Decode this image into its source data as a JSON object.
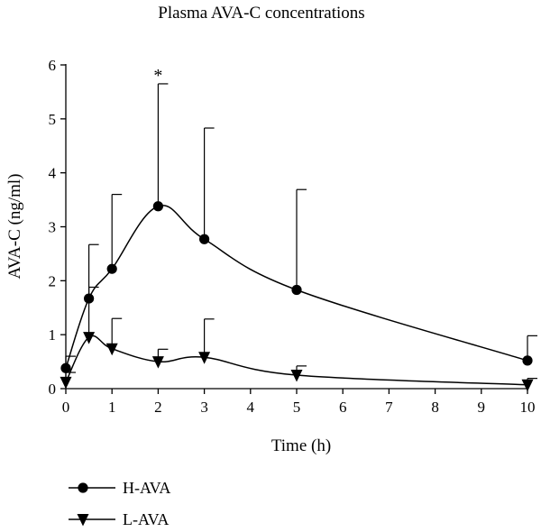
{
  "chart_data": {
    "type": "line",
    "title": "Plasma AVA-C concentrations",
    "xlabel": "Time (h)",
    "ylabel": "AVA-C (ng/ml)",
    "xlim": [
      0,
      10
    ],
    "ylim": [
      0,
      6
    ],
    "x_ticks": [
      "0",
      "1",
      "2",
      "3",
      "4",
      "5",
      "6",
      "7",
      "8",
      "9",
      "10"
    ],
    "y_ticks": [
      "0",
      "1",
      "2",
      "3",
      "4",
      "5",
      "6"
    ],
    "grid": false,
    "legend_position": "bottom-left",
    "annotations": [
      {
        "text": "*",
        "x": 2,
        "y": 5.9
      }
    ],
    "series": [
      {
        "name": "H-AVA",
        "marker": "circle",
        "x": [
          0,
          0.5,
          1,
          2,
          3,
          5,
          10
        ],
        "y": [
          0.38,
          1.67,
          2.22,
          3.38,
          2.77,
          1.83,
          0.52
        ],
        "error_upper": [
          0.6,
          2.67,
          3.6,
          5.65,
          4.83,
          3.69,
          0.98
        ]
      },
      {
        "name": "L-AVA",
        "marker": "triangle-down",
        "x": [
          0,
          0.5,
          1,
          2,
          3,
          5,
          10
        ],
        "y": [
          0.12,
          0.95,
          0.74,
          0.5,
          0.58,
          0.25,
          0.07
        ],
        "error_upper": [
          0.3,
          1.88,
          1.3,
          0.73,
          1.29,
          0.42,
          0.19
        ]
      }
    ]
  }
}
